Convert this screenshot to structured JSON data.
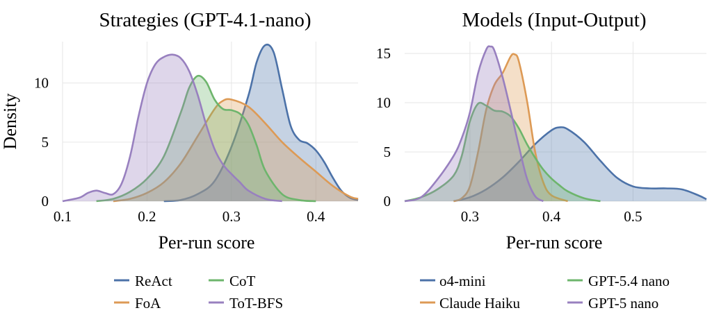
{
  "colors": {
    "ReAct": "#4c72a8",
    "FoA": "#dd9a55",
    "CoT": "#6db56c",
    "ToT-BFS": "#9880bf",
    "o4-mini": "#4c72a8",
    "Claude Haiku": "#dd9a55",
    "GPT-5.4 nano": "#6db56c",
    "GPT-5 nano": "#9880bf"
  },
  "chart_data": [
    {
      "type": "area",
      "title": "Strategies (GPT-4.1-nano)",
      "xlabel": "Per-run score",
      "ylabel": "Density",
      "xlim": [
        0.1,
        0.45
      ],
      "ylim": [
        0,
        13.5
      ],
      "xticks": [
        "0.1",
        "0.2",
        "0.3",
        "0.4"
      ],
      "xtick_values": [
        0.1,
        0.2,
        0.3,
        0.4
      ],
      "yticks": [
        "0",
        "5",
        "10"
      ],
      "ytick_values": [
        0,
        5,
        10
      ],
      "grid": true,
      "legend_position": "bottom",
      "legend": [
        "ReAct",
        "CoT",
        "FoA",
        "ToT-BFS"
      ],
      "series": [
        {
          "name": "ReAct",
          "x": [
            0.22,
            0.24,
            0.26,
            0.28,
            0.3,
            0.32,
            0.33,
            0.34,
            0.35,
            0.36,
            0.37,
            0.38,
            0.39,
            0.4,
            0.41,
            0.42,
            0.43,
            0.44,
            0.45
          ],
          "y": [
            0,
            0.1,
            0.6,
            1.7,
            4.6,
            8.9,
            11.8,
            13.2,
            12.6,
            9.5,
            6.4,
            5.2,
            4.9,
            4.3,
            3.3,
            2.0,
            0.9,
            0.3,
            0.1
          ]
        },
        {
          "name": "FoA",
          "x": [
            0.16,
            0.18,
            0.2,
            0.22,
            0.24,
            0.26,
            0.28,
            0.29,
            0.3,
            0.32,
            0.34,
            0.36,
            0.38,
            0.4,
            0.42,
            0.44,
            0.45
          ],
          "y": [
            0,
            0.2,
            0.7,
            1.6,
            3.2,
            5.5,
            7.8,
            8.5,
            8.6,
            8.0,
            6.6,
            5.0,
            3.7,
            2.5,
            1.3,
            0.4,
            0.2
          ]
        },
        {
          "name": "CoT",
          "x": [
            0.14,
            0.16,
            0.18,
            0.2,
            0.22,
            0.24,
            0.25,
            0.26,
            0.27,
            0.28,
            0.29,
            0.3,
            0.31,
            0.32,
            0.33,
            0.34,
            0.36,
            0.38,
            0.4
          ],
          "y": [
            0,
            0.2,
            0.8,
            1.9,
            3.8,
            7.5,
            9.6,
            10.6,
            10.1,
            8.6,
            7.8,
            7.7,
            7.4,
            6.5,
            4.7,
            2.6,
            0.6,
            0.1,
            0
          ]
        },
        {
          "name": "ToT-BFS",
          "x": [
            0.1,
            0.12,
            0.13,
            0.14,
            0.15,
            0.16,
            0.17,
            0.18,
            0.19,
            0.2,
            0.21,
            0.22,
            0.23,
            0.24,
            0.25,
            0.26,
            0.27,
            0.28,
            0.29,
            0.3,
            0.31,
            0.32,
            0.34,
            0.36
          ],
          "y": [
            0,
            0.3,
            0.7,
            0.9,
            0.7,
            0.6,
            1.5,
            3.8,
            7.2,
            10.0,
            11.6,
            12.2,
            12.4,
            12.1,
            11.0,
            9.0,
            6.5,
            4.4,
            3.1,
            2.3,
            1.6,
            0.9,
            0.2,
            0
          ]
        }
      ]
    },
    {
      "type": "area",
      "title": "Models (Input-Output)",
      "xlabel": "Per-run score",
      "ylabel": "",
      "xlim": [
        0.22,
        0.59
      ],
      "ylim": [
        0,
        16.2
      ],
      "xticks": [
        "0.3",
        "0.4",
        "0.5"
      ],
      "xtick_values": [
        0.3,
        0.4,
        0.5
      ],
      "yticks": [
        "0",
        "5",
        "10",
        "15"
      ],
      "ytick_values": [
        0,
        5,
        10,
        15
      ],
      "grid": true,
      "legend_position": "bottom",
      "legend": [
        "o4-mini",
        "GPT-5.4 nano",
        "Claude Haiku",
        "GPT-5 nano"
      ],
      "series": [
        {
          "name": "o4-mini",
          "x": [
            0.28,
            0.3,
            0.32,
            0.34,
            0.36,
            0.38,
            0.4,
            0.41,
            0.42,
            0.44,
            0.46,
            0.48,
            0.5,
            0.52,
            0.54,
            0.56,
            0.58,
            0.59
          ],
          "y": [
            0,
            0.4,
            1.2,
            2.4,
            4.0,
            5.8,
            7.2,
            7.5,
            7.3,
            6.0,
            4.1,
            2.4,
            1.5,
            1.3,
            1.3,
            1.2,
            0.6,
            0.2
          ]
        },
        {
          "name": "Claude Haiku",
          "x": [
            0.28,
            0.29,
            0.3,
            0.31,
            0.32,
            0.33,
            0.34,
            0.35,
            0.355,
            0.36,
            0.37,
            0.38,
            0.39,
            0.4,
            0.42
          ],
          "y": [
            0,
            0.3,
            1.5,
            5.0,
            9.3,
            11.8,
            13.0,
            14.7,
            14.9,
            14.2,
            10.2,
            5.0,
            1.9,
            0.6,
            0
          ]
        },
        {
          "name": "GPT-5.4 nano",
          "x": [
            0.22,
            0.24,
            0.26,
            0.28,
            0.29,
            0.3,
            0.31,
            0.32,
            0.33,
            0.34,
            0.35,
            0.36,
            0.37,
            0.38,
            0.39,
            0.4,
            0.41,
            0.42,
            0.44,
            0.46
          ],
          "y": [
            0,
            0.4,
            1.2,
            2.6,
            4.6,
            8.1,
            9.9,
            9.7,
            9.2,
            9.1,
            8.6,
            7.4,
            5.8,
            4.4,
            3.2,
            2.3,
            1.6,
            1.0,
            0.3,
            0
          ]
        },
        {
          "name": "GPT-5 nano",
          "x": [
            0.22,
            0.24,
            0.26,
            0.28,
            0.29,
            0.3,
            0.31,
            0.32,
            0.325,
            0.33,
            0.34,
            0.35,
            0.36,
            0.37,
            0.38,
            0.39
          ],
          "y": [
            0,
            0.4,
            2.2,
            4.6,
            6.4,
            9.0,
            13.0,
            15.4,
            15.7,
            15.3,
            12.6,
            9.2,
            5.6,
            2.3,
            0.5,
            0
          ]
        }
      ]
    }
  ]
}
